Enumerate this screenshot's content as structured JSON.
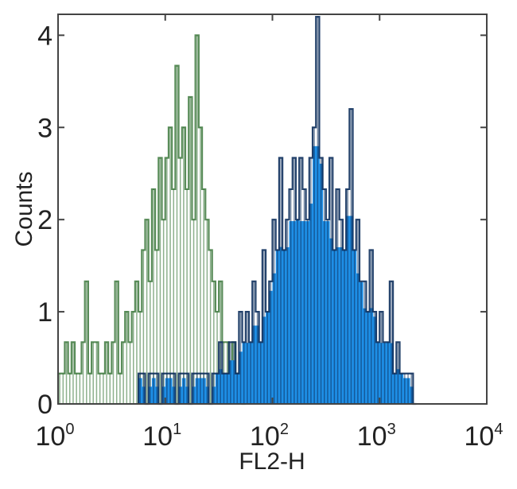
{
  "chart_data": {
    "type": "histogram",
    "title": "",
    "xlabel": "FL2-H",
    "ylabel": "Counts",
    "xscale": "log",
    "xlim": [
      1,
      10000
    ],
    "ylim": [
      0,
      4.2
    ],
    "grid": false,
    "x_ticks": [
      {
        "base": "10",
        "exp": "0"
      },
      {
        "base": "10",
        "exp": "1"
      },
      {
        "base": "10",
        "exp": "2"
      },
      {
        "base": "10",
        "exp": "3"
      },
      {
        "base": "10",
        "exp": "4"
      }
    ],
    "y_ticks": [
      "0",
      "1",
      "2",
      "3",
      "4"
    ],
    "bins_per_decade": 32,
    "series": [
      {
        "color": "#2f6f2f",
        "fill": null,
        "x_log10_start": 0,
        "values": [
          0.33,
          0.33,
          0.67,
          0.33,
          0.67,
          0.33,
          0.33,
          0.67,
          1.33,
          0.33,
          0.67,
          0.67,
          0.33,
          0.33,
          0.67,
          0.33,
          0.67,
          1.33,
          0.33,
          0.67,
          1.0,
          0.67,
          1.0,
          1.33,
          1.0,
          1.67,
          2.0,
          1.33,
          2.33,
          1.67,
          2.67,
          2.0,
          2.67,
          3.0,
          2.33,
          3.67,
          2.67,
          3.0,
          2.33,
          3.33,
          2.0,
          4.0,
          3.0,
          2.33,
          2.0,
          1.67,
          1.33,
          1.0,
          1.33,
          0.67,
          0.67,
          0.33,
          0.67,
          0.33,
          0.33,
          0
        ]
      },
      {
        "color": "#0d2f5c",
        "fill": "#1e8fe6",
        "x_log10_start": 0.75,
        "values": [
          0.33,
          0.33,
          0,
          0.33,
          0.33,
          0.33,
          0,
          0.33,
          0.33,
          0.33,
          0.33,
          0,
          0.33,
          0.33,
          0.33,
          0,
          0.33,
          0.33,
          0.33,
          0.33,
          0.33,
          0,
          0.33,
          0.33,
          0.67,
          0.33,
          0.33,
          0.67,
          0.67,
          0.33,
          1.0,
          0.67,
          1.0,
          0.67,
          1.33,
          1.0,
          0.67,
          1.67,
          1.0,
          1.33,
          2.0,
          1.67,
          2.67,
          1.67,
          2.0,
          2.33,
          2.67,
          2.0,
          2.67,
          2.33,
          2.0,
          2.67,
          3.0,
          4.2,
          2.67,
          2.33,
          2.0,
          2.67,
          1.67,
          2.33,
          2.0,
          1.67,
          2.33,
          3.2,
          1.67,
          2.0,
          1.33,
          1.33,
          1.0,
          1.67,
          1.0,
          0.67,
          1.0,
          0.67,
          0.67,
          1.33,
          0.33,
          0.67,
          0.33,
          0.33,
          0.33,
          0.33,
          0
        ]
      }
    ]
  }
}
